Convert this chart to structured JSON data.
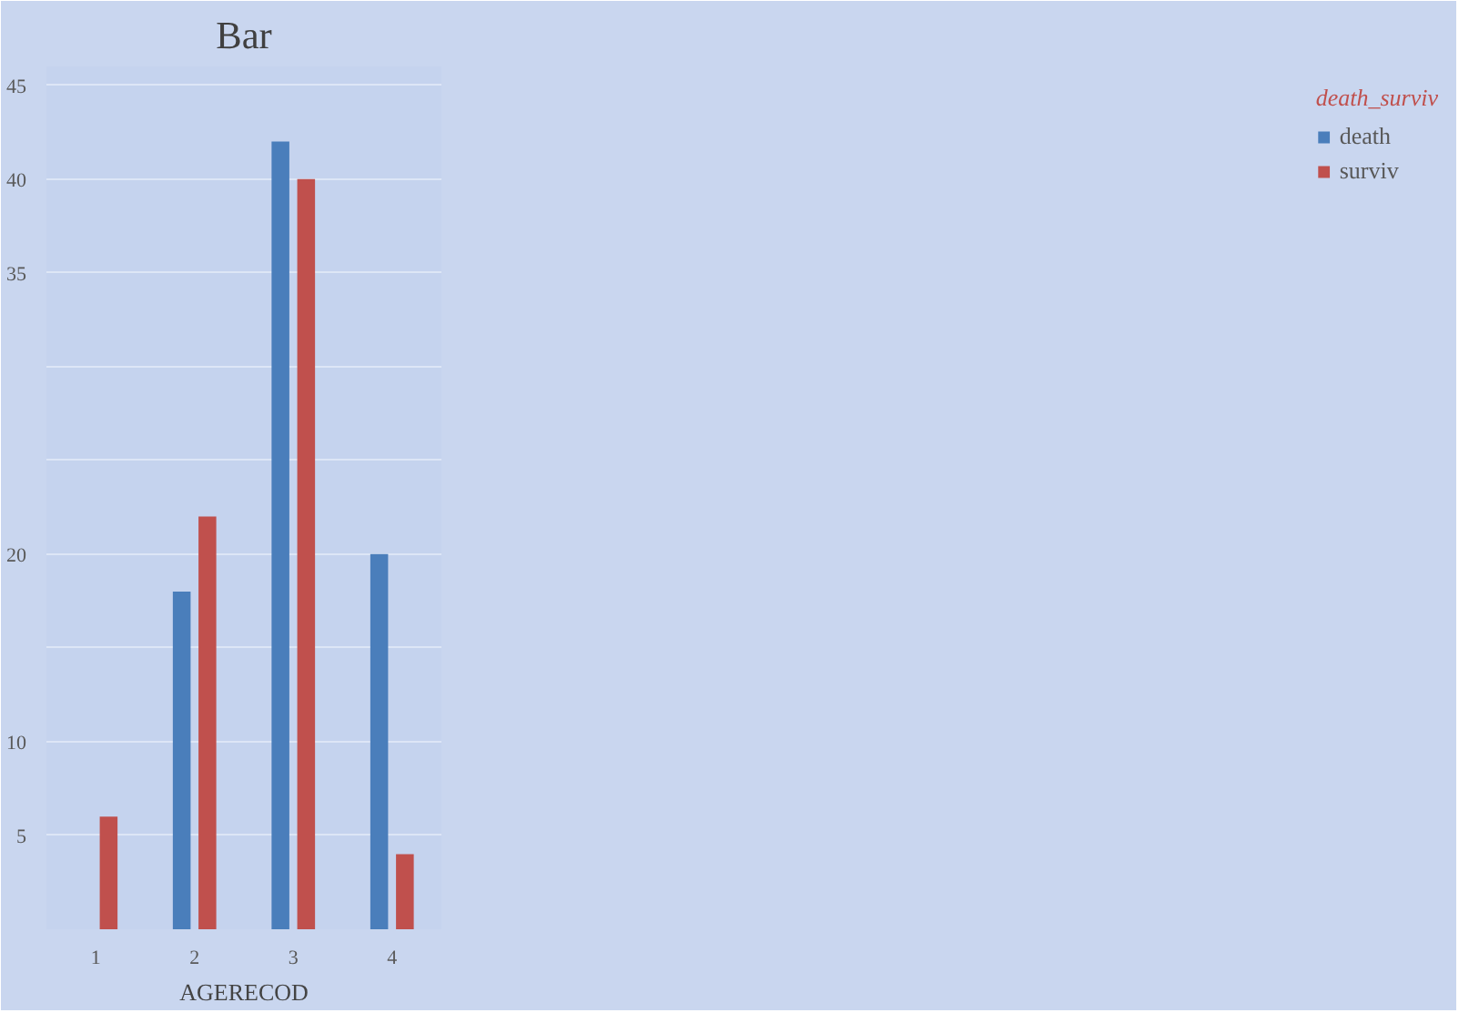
{
  "chart_data": {
    "type": "bar",
    "title": "Bar",
    "xlabel": "AGERECOD",
    "legend_title": "death_surviv",
    "categories": [
      "1",
      "2",
      "3",
      "4"
    ],
    "series": [
      {
        "name": "death",
        "color": "#4a7ebb",
        "values": [
          null,
          18,
          42,
          20
        ]
      },
      {
        "name": "surviv",
        "color": "#c0504d",
        "values": [
          6,
          22,
          40,
          4
        ]
      }
    ],
    "ylim": [
      0,
      46
    ],
    "yticks": [
      5,
      10,
      {
        "value": 15,
        "label": null
      },
      20,
      {
        "value": 25,
        "label": null
      },
      {
        "value": 30,
        "label": null
      },
      35,
      40,
      45
    ],
    "grid": "y",
    "legend": "right"
  }
}
